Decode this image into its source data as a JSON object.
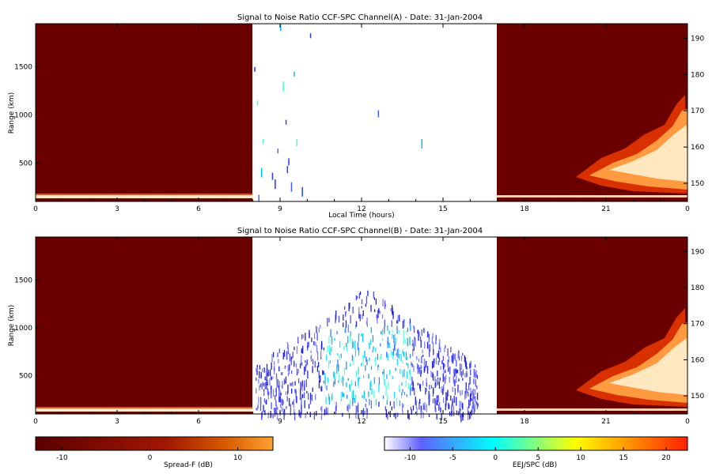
{
  "chart_data": [
    {
      "type": "heatmap",
      "title": "Signal to Noise Ratio CCF-SPC Channel(A) - Date: 31-Jan-2004",
      "xlabel": "Local Time (hours)",
      "ylabel": "Range (km)",
      "x_ticks": [
        "0",
        "3",
        "6",
        "9",
        "12",
        "15",
        "18",
        "21",
        "0"
      ],
      "xlim": [
        0,
        24
      ],
      "y_ticks": [
        "500",
        "1000",
        "1500"
      ],
      "ylim": [
        100,
        1950
      ],
      "y2_ticks": [
        "150",
        "160",
        "170",
        "180",
        "190"
      ],
      "y2lim": [
        145,
        194
      ],
      "nodata_window_hours": [
        8.0,
        17.0
      ],
      "colors": {
        "spreadf_background": "#6b0000",
        "eej_background": "#ffffff"
      },
      "features": [
        {
          "name": "Spread-F low-range echo band",
          "x_range": [
            0,
            8
          ],
          "range_km": [
            100,
            130
          ]
        },
        {
          "name": "Spread-F plume",
          "x_range": [
            19.8,
            24
          ],
          "range_km": [
            120,
            1050
          ]
        },
        {
          "name": "sparse EEJ returns",
          "x_range": [
            8,
            14.2
          ],
          "range_km": [
            50,
            1950
          ]
        }
      ]
    },
    {
      "type": "heatmap",
      "title": "Signal to Noise Ratio CCF-SPC Channel(B) - Date: 31-Jan-2004",
      "xlabel": "",
      "ylabel": "Range (km)",
      "x_ticks": [
        "0",
        "3",
        "6",
        "9",
        "12",
        "15",
        "18",
        "21",
        "0"
      ],
      "xlim": [
        0,
        24
      ],
      "y_ticks": [
        "500",
        "1000",
        "1500"
      ],
      "ylim": [
        100,
        1950
      ],
      "y2_ticks": [
        "150",
        "160",
        "170",
        "180",
        "190"
      ],
      "y2lim": [
        145,
        194
      ],
      "nodata_window_hours": [
        8.0,
        17.0
      ],
      "colors": {
        "spreadf_background": "#6b0000",
        "eej_background": "#ffffff"
      },
      "features": [
        {
          "name": "Spread-F low-range echo band",
          "x_range": [
            0,
            8
          ],
          "range_km": [
            100,
            130
          ]
        },
        {
          "name": "Spread-F plume",
          "x_range": [
            19.8,
            24
          ],
          "range_km": [
            120,
            1050
          ]
        },
        {
          "name": "EEJ / 150 km echoes",
          "x_range": [
            8.1,
            16.3
          ],
          "range_km": [
            0,
            1350
          ]
        }
      ]
    }
  ],
  "colorbars": [
    {
      "label": "Spread-F (dB)",
      "ticks": [
        "-10",
        "0",
        "10"
      ],
      "range": [
        -13,
        14
      ],
      "colors": [
        "#5a0000",
        "#a01800",
        "#d85a00",
        "#ffa030"
      ]
    },
    {
      "label": "EEJ/SPC (dB)",
      "ticks": [
        "-10",
        "-5",
        "0",
        "5",
        "10",
        "15",
        "20"
      ],
      "range": [
        -13,
        22.5
      ],
      "colors": [
        "#ffffff",
        "#3030ff",
        "#00ffff",
        "#ffff00",
        "#ff3000"
      ]
    }
  ]
}
